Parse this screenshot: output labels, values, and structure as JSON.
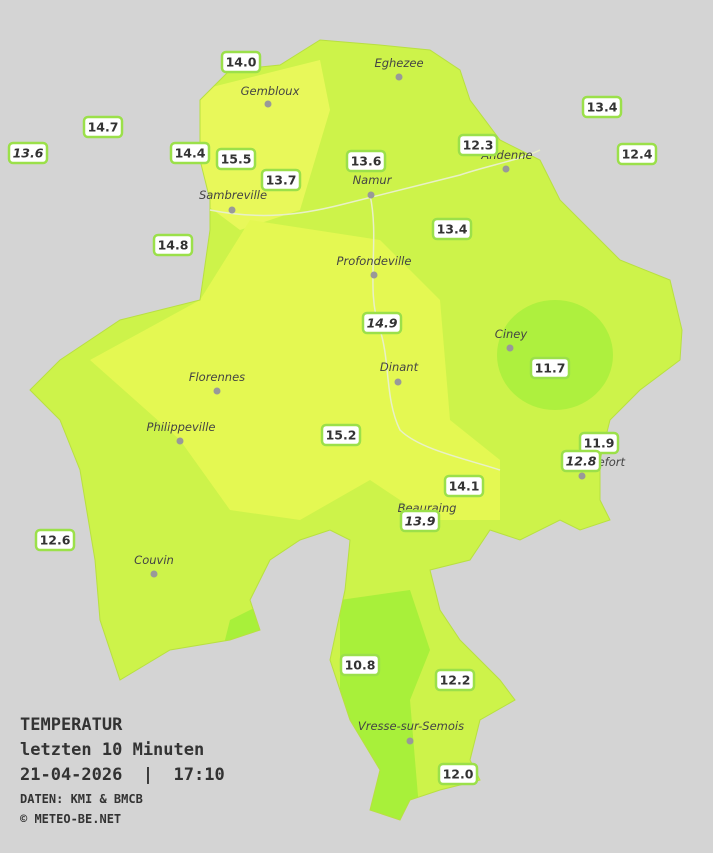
{
  "legend": {
    "title": "TEMPERATUR",
    "subtitle": "letzten 10 Minuten",
    "timestamp": "21-04-2026  |  17:10",
    "source": "DATEN: KMI & BMCB",
    "copyright": "© METEO-BE.NET"
  },
  "cities": [
    "Eghezee",
    "Gembloux",
    "Andenne",
    "Namur",
    "Sambreville",
    "Profondeville",
    "Ciney",
    "Dinant",
    "Florennes",
    "Philippeville",
    "Rochefort",
    "Beauraing",
    "Couvin",
    "Vresse-sur-Semois"
  ],
  "stations": [
    "14.0",
    "14.7",
    "13.6",
    "14.4",
    "15.5",
    "13.7",
    "13.6",
    "12.3",
    "13.4",
    "12.4",
    "14.8",
    "13.4",
    "14.9",
    "11.7",
    "15.2",
    "11.9",
    "12.8",
    "14.1",
    "13.9",
    "12.6",
    "10.8",
    "12.2",
    "12.0"
  ]
}
